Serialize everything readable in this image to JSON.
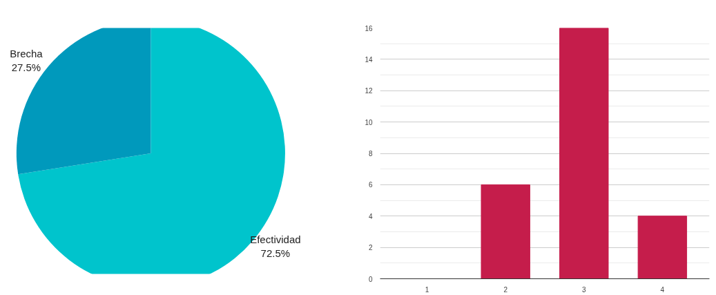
{
  "chart_data": [
    {
      "type": "pie",
      "categories": [
        "Efectividad",
        "Brecha"
      ],
      "values": [
        72.5,
        27.5
      ],
      "colors": [
        "#00c4cc",
        "#0099bc"
      ],
      "value_labels": [
        "72.5%",
        "27.5%"
      ]
    },
    {
      "type": "bar",
      "categories": [
        "1",
        "2",
        "3",
        "4"
      ],
      "values": [
        0,
        6,
        16,
        4
      ],
      "color": "#c51d4b",
      "ylim": [
        0,
        16
      ],
      "yticks": [
        0,
        2,
        4,
        6,
        8,
        10,
        12,
        14,
        16
      ],
      "grid": "y"
    }
  ]
}
